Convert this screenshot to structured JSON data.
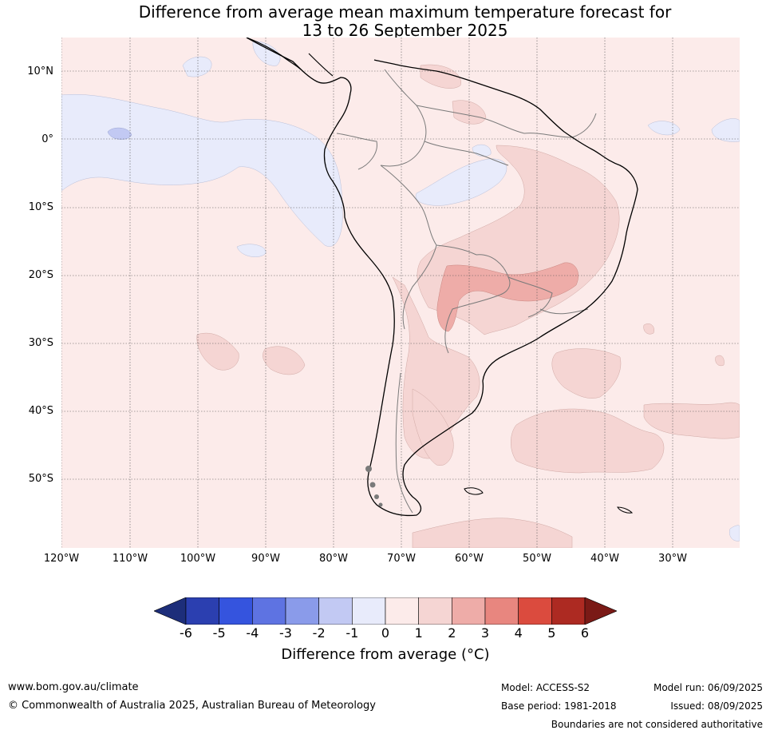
{
  "title_line1": "Difference from average mean maximum temperature forecast for",
  "title_line2": "13 to 26 September 2025",
  "lat_labels": [
    "10°N",
    "0°",
    "10°S",
    "20°S",
    "30°S",
    "40°S",
    "50°S"
  ],
  "lon_labels": [
    "120°W",
    "110°W",
    "100°W",
    "90°W",
    "80°W",
    "70°W",
    "60°W",
    "50°W",
    "40°W",
    "30°W"
  ],
  "colorbar": {
    "ticks": [
      "-6",
      "-5",
      "-4",
      "-3",
      "-2",
      "-1",
      "0",
      "1",
      "2",
      "3",
      "4",
      "5",
      "6"
    ],
    "colors": [
      "#1d2e7a",
      "#2b3fb0",
      "#3554de",
      "#5e73e2",
      "#8a9bea",
      "#c2c9f3",
      "#e8ebfb",
      "#fcebea",
      "#f5d5d3",
      "#eeaca8",
      "#e8867f",
      "#db4b3e",
      "#ad2a22",
      "#7a1a16"
    ],
    "label": "Difference from average (°C)"
  },
  "map_colors": {
    "background": "#fcebea",
    "cool_light": "#e8ebfb",
    "cool_mid": "#c2c9f3",
    "warm_light": "#f5d5d3",
    "warm_mid": "#eeaca8",
    "coast": "#000000",
    "borders": "#7a7a7a"
  },
  "footer": {
    "website": "www.bom.gov.au/climate",
    "copyright": "© Commonwealth of Australia 2025, Australian Bureau of Meteorology",
    "model": "Model: ACCESS-S2",
    "base_period": "Base period: 1981-2018",
    "model_run": "Model run: 06/09/2025",
    "issued": "Issued: 08/09/2025",
    "disclaimer": "Boundaries are not considered authoritative"
  }
}
